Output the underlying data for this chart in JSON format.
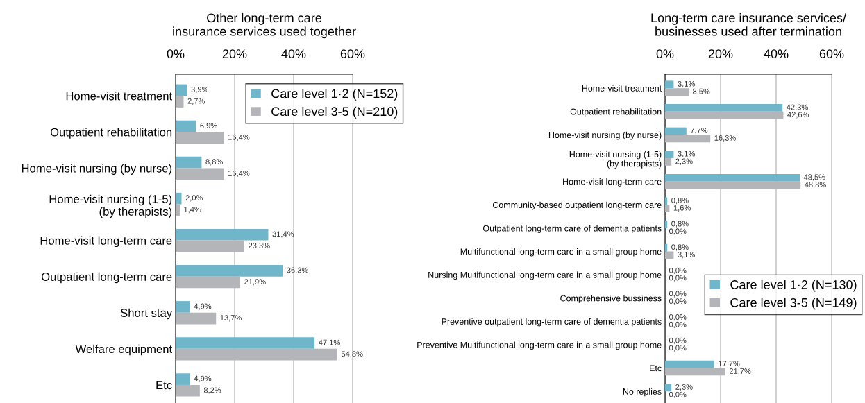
{
  "chart_data": [
    {
      "type": "bar",
      "orientation": "horizontal",
      "title": "Other long-term care\ninsurance services used together",
      "categories": [
        "Home-visit treatment",
        "Outpatient rehabilitation",
        "Home-visit nursing (by nurse)",
        "Home-visit nursing (1-5)\n(by therapists)",
        "Home-visit long-term care",
        "Outpatient long-term care",
        "Short stay",
        "Welfare equipment",
        "Etc"
      ],
      "series": [
        {
          "name": "Care level 1·2 (N=152)",
          "color": "#6fb6cb",
          "values": [
            3.9,
            6.9,
            8.8,
            2.0,
            31.4,
            36.3,
            4.9,
            47.1,
            4.9
          ],
          "value_labels": [
            "3,9%",
            "6,9%",
            "8,8%",
            "2,0%",
            "31,4%",
            "36,3%",
            "4,9%",
            "47,1%",
            "4,9%"
          ]
        },
        {
          "name": "Care level 3-5 (N=210)",
          "color": "#b4b5b8",
          "values": [
            2.7,
            16.4,
            16.4,
            1.4,
            23.3,
            21.9,
            13.7,
            54.8,
            8.2
          ],
          "value_labels": [
            "2,7%",
            "16,4%",
            "16,4%",
            "1,4%",
            "23,3%",
            "21,9%",
            "13,7%",
            "54,8%",
            "8,2%"
          ]
        }
      ],
      "xlim": [
        0,
        60
      ],
      "xticks": [
        {
          "value": 0,
          "label": "0%"
        },
        {
          "value": 20,
          "label": "20%"
        },
        {
          "value": 40,
          "label": "40%"
        },
        {
          "value": 60,
          "label": "60%"
        }
      ],
      "grid": "x",
      "legend": "top right"
    },
    {
      "type": "bar",
      "orientation": "horizontal",
      "title": "Long-term care insurance services/\nbusinesses used after termination",
      "categories": [
        "Home-visit treatment",
        "Outpatient rehabilitation",
        "Home-visit nursing (by nurse)",
        "Home-visit nursing (1-5)\n(by therapists)",
        "Home-visit long-term care",
        "Community-based outpatient long-term care",
        "Outpatient long-term care of dementia patients",
        "Multifunctional long-term care in a small group home",
        "Nursing Multifunctional long-term care in a small group home",
        "Comprehensive bussiness",
        "Preventive outpatient long-term care of dementia patients",
        "Preventive Multifunctional long-term care in a small group home",
        "Etc",
        "No replies"
      ],
      "series": [
        {
          "name": "Care level 1·2 (N=130)",
          "color": "#6fb6cb",
          "values": [
            3.1,
            42.3,
            7.7,
            3.1,
            48.5,
            0.8,
            0.8,
            0.8,
            0.0,
            0.0,
            0.0,
            0.0,
            17.7,
            2.3
          ],
          "value_labels": [
            "3,1%",
            "42,3%",
            "7,7%",
            "3,1%",
            "48,5%",
            "0,8%",
            "0,8%",
            "0,8%",
            "0,0%",
            "0,0%",
            "0,0%",
            "0,0%",
            "17,7%",
            "2,3%"
          ]
        },
        {
          "name": "Care level 3-5 (N=149)",
          "color": "#b4b5b8",
          "values": [
            8.5,
            42.6,
            16.3,
            2.3,
            48.8,
            1.6,
            0.0,
            3.1,
            0.0,
            0.0,
            0.0,
            0.0,
            21.7,
            0.0
          ],
          "value_labels": [
            "8,5%",
            "42,6%",
            "16,3%",
            "2,3%",
            "48,8%",
            "1,6%",
            "0,0%",
            "3,1%",
            "0,0%",
            "0,0%",
            "0,0%",
            "0,0%",
            "21,7%",
            "0,0%"
          ]
        }
      ],
      "xlim": [
        0,
        60
      ],
      "xticks": [
        {
          "value": 0,
          "label": "0%"
        },
        {
          "value": 20,
          "label": "20%"
        },
        {
          "value": 40,
          "label": "40%"
        },
        {
          "value": 60,
          "label": "60%"
        }
      ],
      "grid": "x",
      "legend": "lower right"
    }
  ]
}
